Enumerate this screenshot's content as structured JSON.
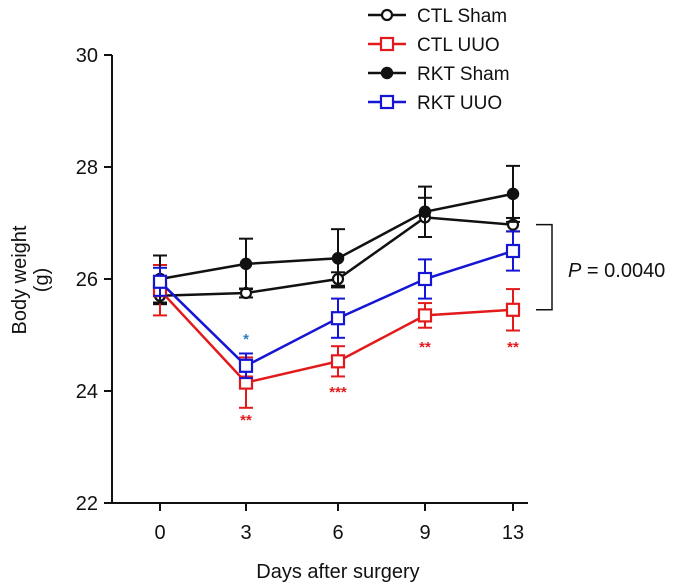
{
  "chart_data": {
    "type": "line",
    "title": "",
    "xlabel": "Days after surgery",
    "ylabel": "Body weight (g)",
    "ylabel_lines": [
      "Body weight",
      "(g)"
    ],
    "x": [
      0,
      3,
      6,
      9,
      13
    ],
    "x_tick_labels": [
      "0",
      "3",
      "6",
      "9",
      "13"
    ],
    "ylim": [
      22,
      30
    ],
    "y_ticks": [
      22,
      24,
      26,
      28,
      30
    ],
    "y_tick_labels": [
      "22",
      "24",
      "26",
      "28",
      "30"
    ],
    "legend_position": "top-right",
    "series": [
      {
        "name": "CTL Sham",
        "color": "#111111",
        "marker": "open-circle",
        "values": [
          25.7,
          25.75,
          26.0,
          27.1,
          26.97
        ],
        "errors": [
          0.15,
          0.08,
          0.12,
          0.35,
          0.12
        ]
      },
      {
        "name": "CTL UUO",
        "color": "#e31a1c",
        "marker": "open-square",
        "values": [
          25.8,
          24.15,
          24.53,
          25.35,
          25.45
        ],
        "errors": [
          0.45,
          0.45,
          0.27,
          0.22,
          0.37
        ]
      },
      {
        "name": "RKT Sham",
        "color": "#111111",
        "marker": "filled-circle",
        "values": [
          26.0,
          26.27,
          26.37,
          27.2,
          27.52
        ],
        "errors": [
          0.42,
          0.45,
          0.52,
          0.45,
          0.5
        ]
      },
      {
        "name": "RKT UUO",
        "color": "#1515d6",
        "marker": "open-square",
        "values": [
          25.95,
          24.45,
          25.3,
          26.0,
          26.5
        ],
        "errors": [
          0.25,
          0.22,
          0.35,
          0.35,
          0.35
        ]
      }
    ],
    "annotations": [
      {
        "text": "*",
        "x": 3,
        "y": 24.95,
        "color": "#2a7fc1"
      },
      {
        "text": "**",
        "x": 3,
        "y": 23.5,
        "color": "#e31a1c"
      },
      {
        "text": "***",
        "x": 6,
        "y": 24.0,
        "color": "#e31a1c"
      },
      {
        "text": "**",
        "x": 9,
        "y": 24.8,
        "color": "#e31a1c"
      },
      {
        "text": "**",
        "x": 13,
        "y": 24.8,
        "color": "#e31a1c"
      }
    ],
    "bracket": {
      "y_top": 26.97,
      "y_bottom": 25.45,
      "label_prefix": "P",
      "label_suffix": " = 0.0040"
    }
  }
}
